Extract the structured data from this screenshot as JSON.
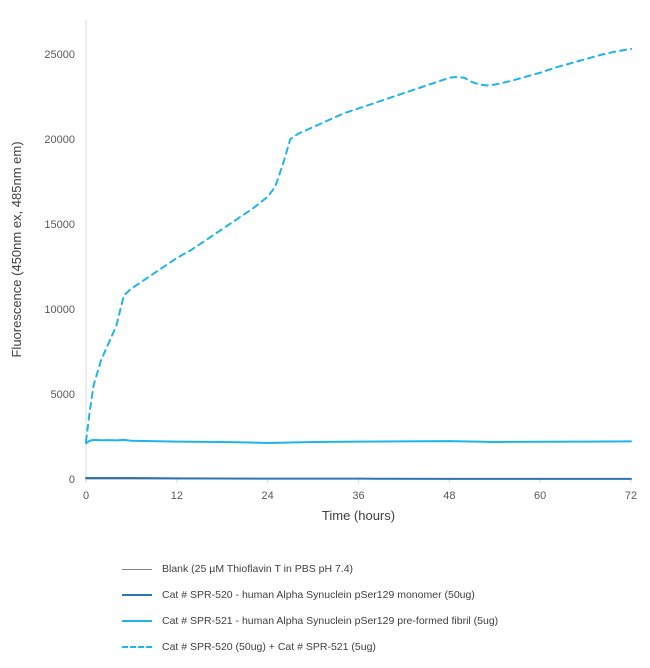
{
  "chart_data": {
    "type": "line",
    "title": "",
    "xlabel": "Time (hours)",
    "ylabel": "Fluorescence (450nm ex, 485nm em)",
    "xlim": [
      0,
      72
    ],
    "ylim": [
      0,
      27000
    ],
    "xticks": [
      0,
      12,
      24,
      36,
      48,
      60,
      72
    ],
    "yticks": [
      0,
      5000,
      10000,
      15000,
      20000,
      25000
    ],
    "grid": false,
    "legend_position": "bottom",
    "series": [
      {
        "name": "Blank (25 µM Thioflavin T in PBS pH 7.4)",
        "color": "#7f7f7f",
        "dash": "solid",
        "x": [
          0,
          12,
          24,
          36,
          48,
          60,
          72
        ],
        "y": [
          10,
          10,
          10,
          10,
          10,
          10,
          10
        ]
      },
      {
        "name": "Cat # SPR-520 - human Alpha Synuclein pSer129 monomer (50ug)",
        "color": "#2e75b6",
        "dash": "solid",
        "x": [
          0,
          6,
          12,
          24,
          36,
          48,
          60,
          72
        ],
        "y": [
          60,
          60,
          40,
          20,
          20,
          10,
          10,
          10
        ]
      },
      {
        "name": "Cat # SPR-521 - human Alpha Synuclein pSer129 pre-formed fibril (5ug)",
        "color": "#1fb4ea",
        "dash": "solid",
        "x": [
          0,
          0.5,
          1,
          2,
          3,
          4,
          5,
          6,
          12,
          18,
          24,
          30,
          36,
          42,
          48,
          54,
          60,
          66,
          72
        ],
        "y": [
          2100,
          2250,
          2300,
          2280,
          2290,
          2270,
          2300,
          2250,
          2200,
          2180,
          2120,
          2180,
          2200,
          2210,
          2230,
          2180,
          2190,
          2200,
          2210
        ]
      },
      {
        "name": "Cat # SPR-520 (50ug) + Cat # SPR-521 (5ug)",
        "color": "#1fb4ea",
        "dash": "dashed",
        "x": [
          0,
          0.5,
          1,
          2,
          3,
          4,
          5,
          6,
          8,
          10,
          12,
          14,
          16,
          18,
          20,
          22,
          24,
          25,
          26,
          27,
          28,
          29,
          30,
          32,
          34,
          36,
          38,
          40,
          42,
          44,
          46,
          48,
          49,
          50,
          51,
          52,
          53,
          54,
          56,
          58,
          60,
          62,
          64,
          66,
          68,
          70,
          72
        ],
        "y": [
          2200,
          4000,
          5500,
          7000,
          8000,
          9000,
          10800,
          11200,
          11800,
          12400,
          13000,
          13500,
          14100,
          14700,
          15300,
          15900,
          16600,
          17200,
          18500,
          20000,
          20300,
          20500,
          20700,
          21100,
          21500,
          21800,
          22100,
          22400,
          22700,
          23000,
          23300,
          23600,
          23650,
          23600,
          23350,
          23200,
          23150,
          23200,
          23400,
          23650,
          23900,
          24200,
          24450,
          24700,
          24950,
          25150,
          25300
        ]
      }
    ]
  }
}
